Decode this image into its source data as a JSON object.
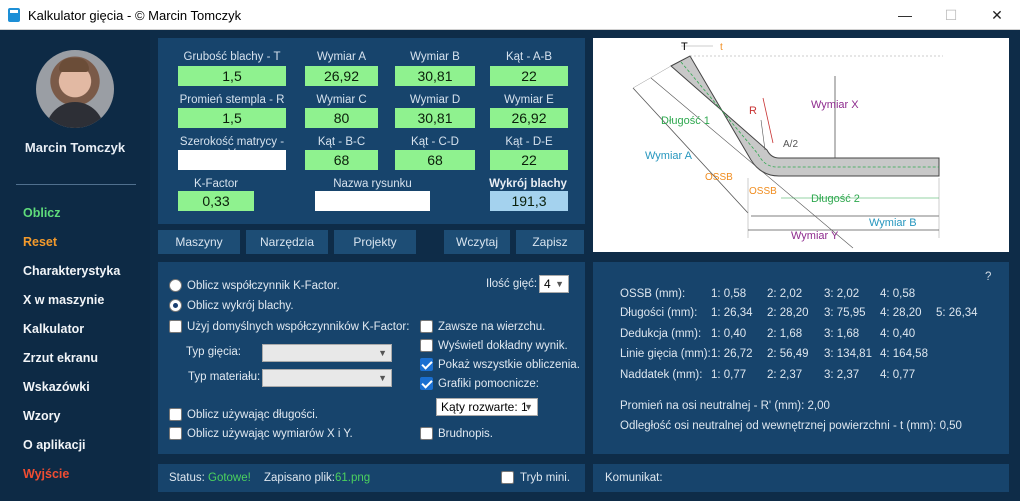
{
  "window": {
    "title": "Kalkulator gięcia - © Marcin Tomczyk",
    "minimize": "—",
    "maximize": "☐",
    "close": "✕"
  },
  "sidebar": {
    "user_name": "Marcin Tomczyk",
    "items": [
      {
        "label": "Oblicz"
      },
      {
        "label": "Reset"
      },
      {
        "label": "Charakterystyka"
      },
      {
        "label": "X w maszynie"
      },
      {
        "label": "Kalkulator"
      },
      {
        "label": "Zrzut ekranu"
      },
      {
        "label": "Wskazówki"
      },
      {
        "label": "Wzory"
      },
      {
        "label": "O aplikacji"
      },
      {
        "label": "Wyjście"
      }
    ],
    "colors": {
      "oblicz": "#5fdc7b",
      "reset": "#f39a2c",
      "wyjscie": "#f04d32"
    }
  },
  "inputs": {
    "grubosc_label": "Grubość blachy - T",
    "grubosc_value": "1,5",
    "promien_label": "Promień stempla - R",
    "promien_value": "1,5",
    "szerokosc_label": "Szerokość matrycy - V",
    "szerokosc_value": "",
    "kfactor_label": "K-Factor",
    "kfactor_value": "0,33",
    "nazwa_label": "Nazwa rysunku",
    "nazwa_value": "",
    "wykroj_label": "Wykrój blachy",
    "wykroj_value": "191,3",
    "wymiar_a_label": "Wymiar A",
    "wymiar_a_value": "26,92",
    "wymiar_b_label": "Wymiar B",
    "wymiar_b_value": "30,81",
    "kat_ab_label": "Kąt - A-B",
    "kat_ab_value": "22",
    "wymiar_c_label": "Wymiar C",
    "wymiar_c_value": "80",
    "wymiar_d_label": "Wymiar D",
    "wymiar_d_value": "30,81",
    "wymiar_e_label": "Wymiar E",
    "wymiar_e_value": "26,92",
    "kat_bc_label": "Kąt - B-C",
    "kat_bc_value": "68",
    "kat_cd_label": "Kąt - C-D",
    "kat_cd_value": "68",
    "kat_de_label": "Kąt - D-E",
    "kat_de_value": "22"
  },
  "tabs": [
    {
      "label": "Maszyny"
    },
    {
      "label": "Narzędzia"
    },
    {
      "label": "Projekty"
    },
    {
      "label": "Wczytaj"
    },
    {
      "label": "Zapisz"
    }
  ],
  "diagram": {
    "t": "T",
    "t_small": "t",
    "r": "R",
    "dlugosc1": "Długość 1",
    "dlugosc2": "Długość 2",
    "wymiar_x": "Wymiar X",
    "wymiar_a": "Wymiar A",
    "wymiar_b": "Wymiar B",
    "wymiar_y": "Wymiar Y",
    "a2": "A/2",
    "ossb1": "OSSB",
    "ossb2": "OSSB"
  },
  "options": {
    "radio_kfactor": "Oblicz współczynnik K-Factor.",
    "radio_wykroj": "Oblicz wykrój blachy.",
    "cb_domyslne": "Użyj domyślnych współczynników K-Factor:",
    "typ_giecia_label": "Typ gięcia:",
    "typ_materialu_label": "Typ materiału:",
    "ilosc_giec_label": "Ilość gięć:",
    "ilosc_giec_value": "4",
    "cb_wierzchu": "Zawsze na wierzchu.",
    "cb_dokladny": "Wyświetl dokładny wynik.",
    "cb_pokaz": "Pokaż wszystkie obliczenia.",
    "cb_grafiki": "Grafiki pomocnicze:",
    "katy_value": "Kąty rozwarte: 1",
    "cb_dlugosci": "Oblicz używając długości.",
    "cb_xy": "Oblicz używając wymiarów X i Y.",
    "cb_brudnopis": "Brudnopis."
  },
  "results": {
    "help": "?",
    "rows": [
      {
        "label": "OSSB (mm):",
        "v1": "1: 0,58",
        "v2": "2: 2,02",
        "v3": "3: 2,02",
        "v4": "4: 0,58",
        "v5": ""
      },
      {
        "label": "Długości (mm):",
        "v1": "1: 26,34",
        "v2": "2: 28,20",
        "v3": "3: 75,95",
        "v4": "4: 28,20",
        "v5": "5: 26,34"
      },
      {
        "label": "Dedukcja (mm):",
        "v1": "1: 0,40",
        "v2": "2: 1,68",
        "v3": "3: 1,68",
        "v4": "4: 0,40",
        "v5": ""
      },
      {
        "label": "Linie gięcia (mm):",
        "v1": "1: 26,72",
        "v2": "2: 56,49",
        "v3": "3: 134,81",
        "v4": "4: 164,58",
        "v5": ""
      },
      {
        "label": "Naddatek (mm):",
        "v1": "1: 0,77",
        "v2": "2: 2,37",
        "v3": "3: 2,37",
        "v4": "4: 0,77",
        "v5": ""
      }
    ],
    "promien_neutral": "Promień na osi neutralnej - R' (mm): 2,00",
    "odleglosc_neutral": "Odległość osi neutralnej od wewnętrznej powierzchni - t (mm): 0,50"
  },
  "status": {
    "status_label": "Status:",
    "status_value": "Gotowe!",
    "zapisano_label": "Zapisano plik:",
    "zapisano_value": "61.png",
    "tryb_mini": "Tryb mini.",
    "komunikat_label": "Komunikat:",
    "ok_color": "#4bd15e"
  }
}
